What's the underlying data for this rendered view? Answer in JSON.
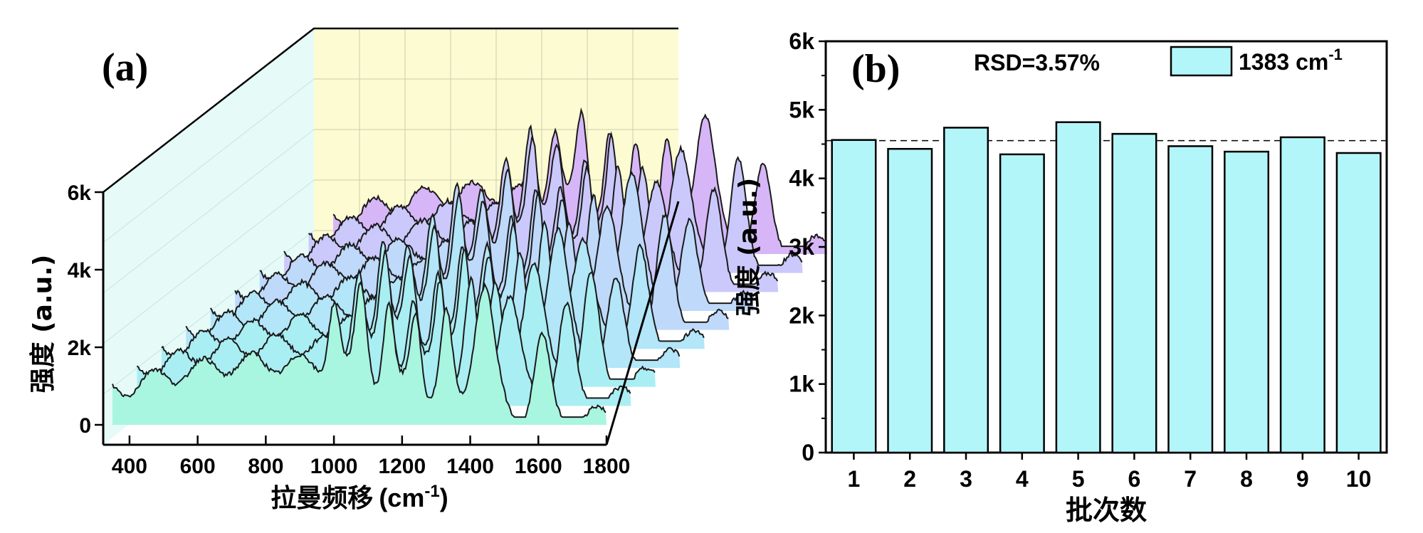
{
  "chart_data": [
    {
      "type": "line",
      "panel_label": "(a)",
      "title": "",
      "xlabel": "拉曼频移",
      "xlabel_unit": "(cm",
      "xlabel_unit_sup": "-1",
      "xlabel_unit_close": ")",
      "ylabel": "强度 (a.u.)",
      "xlim": [
        350,
        1800
      ],
      "ylim": [
        0,
        6000
      ],
      "x_ticks": [
        "400",
        "600",
        "800",
        "1000",
        "1200",
        "1400",
        "1600",
        "1800"
      ],
      "y_ticks": [
        "0",
        "2k",
        "4k",
        "6k"
      ],
      "series_count": 10,
      "colors": [
        "#a8f5e0",
        "#a9eef3",
        "#b2e6f8",
        "#bfd9fb",
        "#cbc9fb",
        "#d6b6f7"
      ],
      "peaks_cm-1": [
        1000,
        1080,
        1160,
        1240,
        1330,
        1440,
        1610
      ]
    },
    {
      "type": "bar",
      "panel_label": "(b)",
      "title": "",
      "annotation": "RSD=3.57%",
      "legend": {
        "label": "1383 cm",
        "label_sup": "-1",
        "placement": "top-right"
      },
      "xlabel": "批次数",
      "ylabel": "强度 (a.u.)",
      "ylim": [
        0,
        6000
      ],
      "y_ticks": [
        "0",
        "1k",
        "2k",
        "3k",
        "4k",
        "5k",
        "6k"
      ],
      "categories": [
        "1",
        "2",
        "3",
        "4",
        "5",
        "6",
        "7",
        "8",
        "9",
        "10"
      ],
      "values": [
        4560,
        4430,
        4740,
        4350,
        4820,
        4650,
        4470,
        4390,
        4600,
        4370
      ],
      "mean_line": 4550,
      "bar_color": "#b3f6fa",
      "edge_color": "#000000"
    }
  ]
}
